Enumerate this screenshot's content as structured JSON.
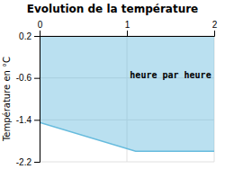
{
  "chart_data": {
    "type": "area",
    "title": "Evolution de la température",
    "ylabel": "Température en °C",
    "x": [
      0,
      1.1,
      2
    ],
    "values": [
      -1.45,
      -2.0,
      -2.0
    ],
    "color": "#66bbdd",
    "xlim": [
      0,
      2
    ],
    "xticks": [
      0,
      1,
      2
    ],
    "ylim": [
      -2.2,
      0.2
    ],
    "yticks": [
      0.2,
      -0.6,
      -1.4,
      -2.2
    ],
    "grid": true,
    "annotations": [
      {
        "text": "heure par heure",
        "x": 1.5,
        "y": -0.45
      }
    ]
  }
}
